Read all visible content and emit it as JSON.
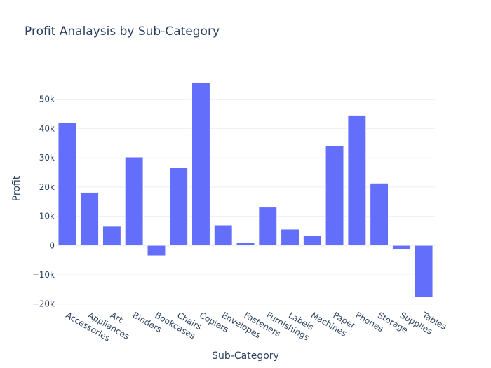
{
  "chart_data": {
    "type": "bar",
    "title": "Profit Analaysis by Sub-Category",
    "xlabel": "Sub-Category",
    "ylabel": "Profit",
    "categories": [
      "Accessories",
      "Appliances",
      "Art",
      "Binders",
      "Bookcases",
      "Chairs",
      "Copiers",
      "Envelopes",
      "Fasteners",
      "Furnishings",
      "Labels",
      "Machines",
      "Paper",
      "Phones",
      "Storage",
      "Supplies",
      "Tables"
    ],
    "values": [
      41937,
      18138,
      6528,
      30222,
      -3473,
      26590,
      55618,
      6964,
      950,
      13059,
      5546,
      3385,
      34054,
      44516,
      21279,
      -1189,
      -17725
    ],
    "ylim": [
      -21500,
      60000
    ],
    "yticks": [
      -20000,
      -10000,
      0,
      10000,
      20000,
      30000,
      40000,
      50000
    ],
    "ytick_labels": [
      "−20k",
      "−10k",
      "0",
      "10k",
      "20k",
      "30k",
      "40k",
      "50k"
    ],
    "bar_color": "#636efa",
    "grid": true,
    "legend": "none"
  }
}
